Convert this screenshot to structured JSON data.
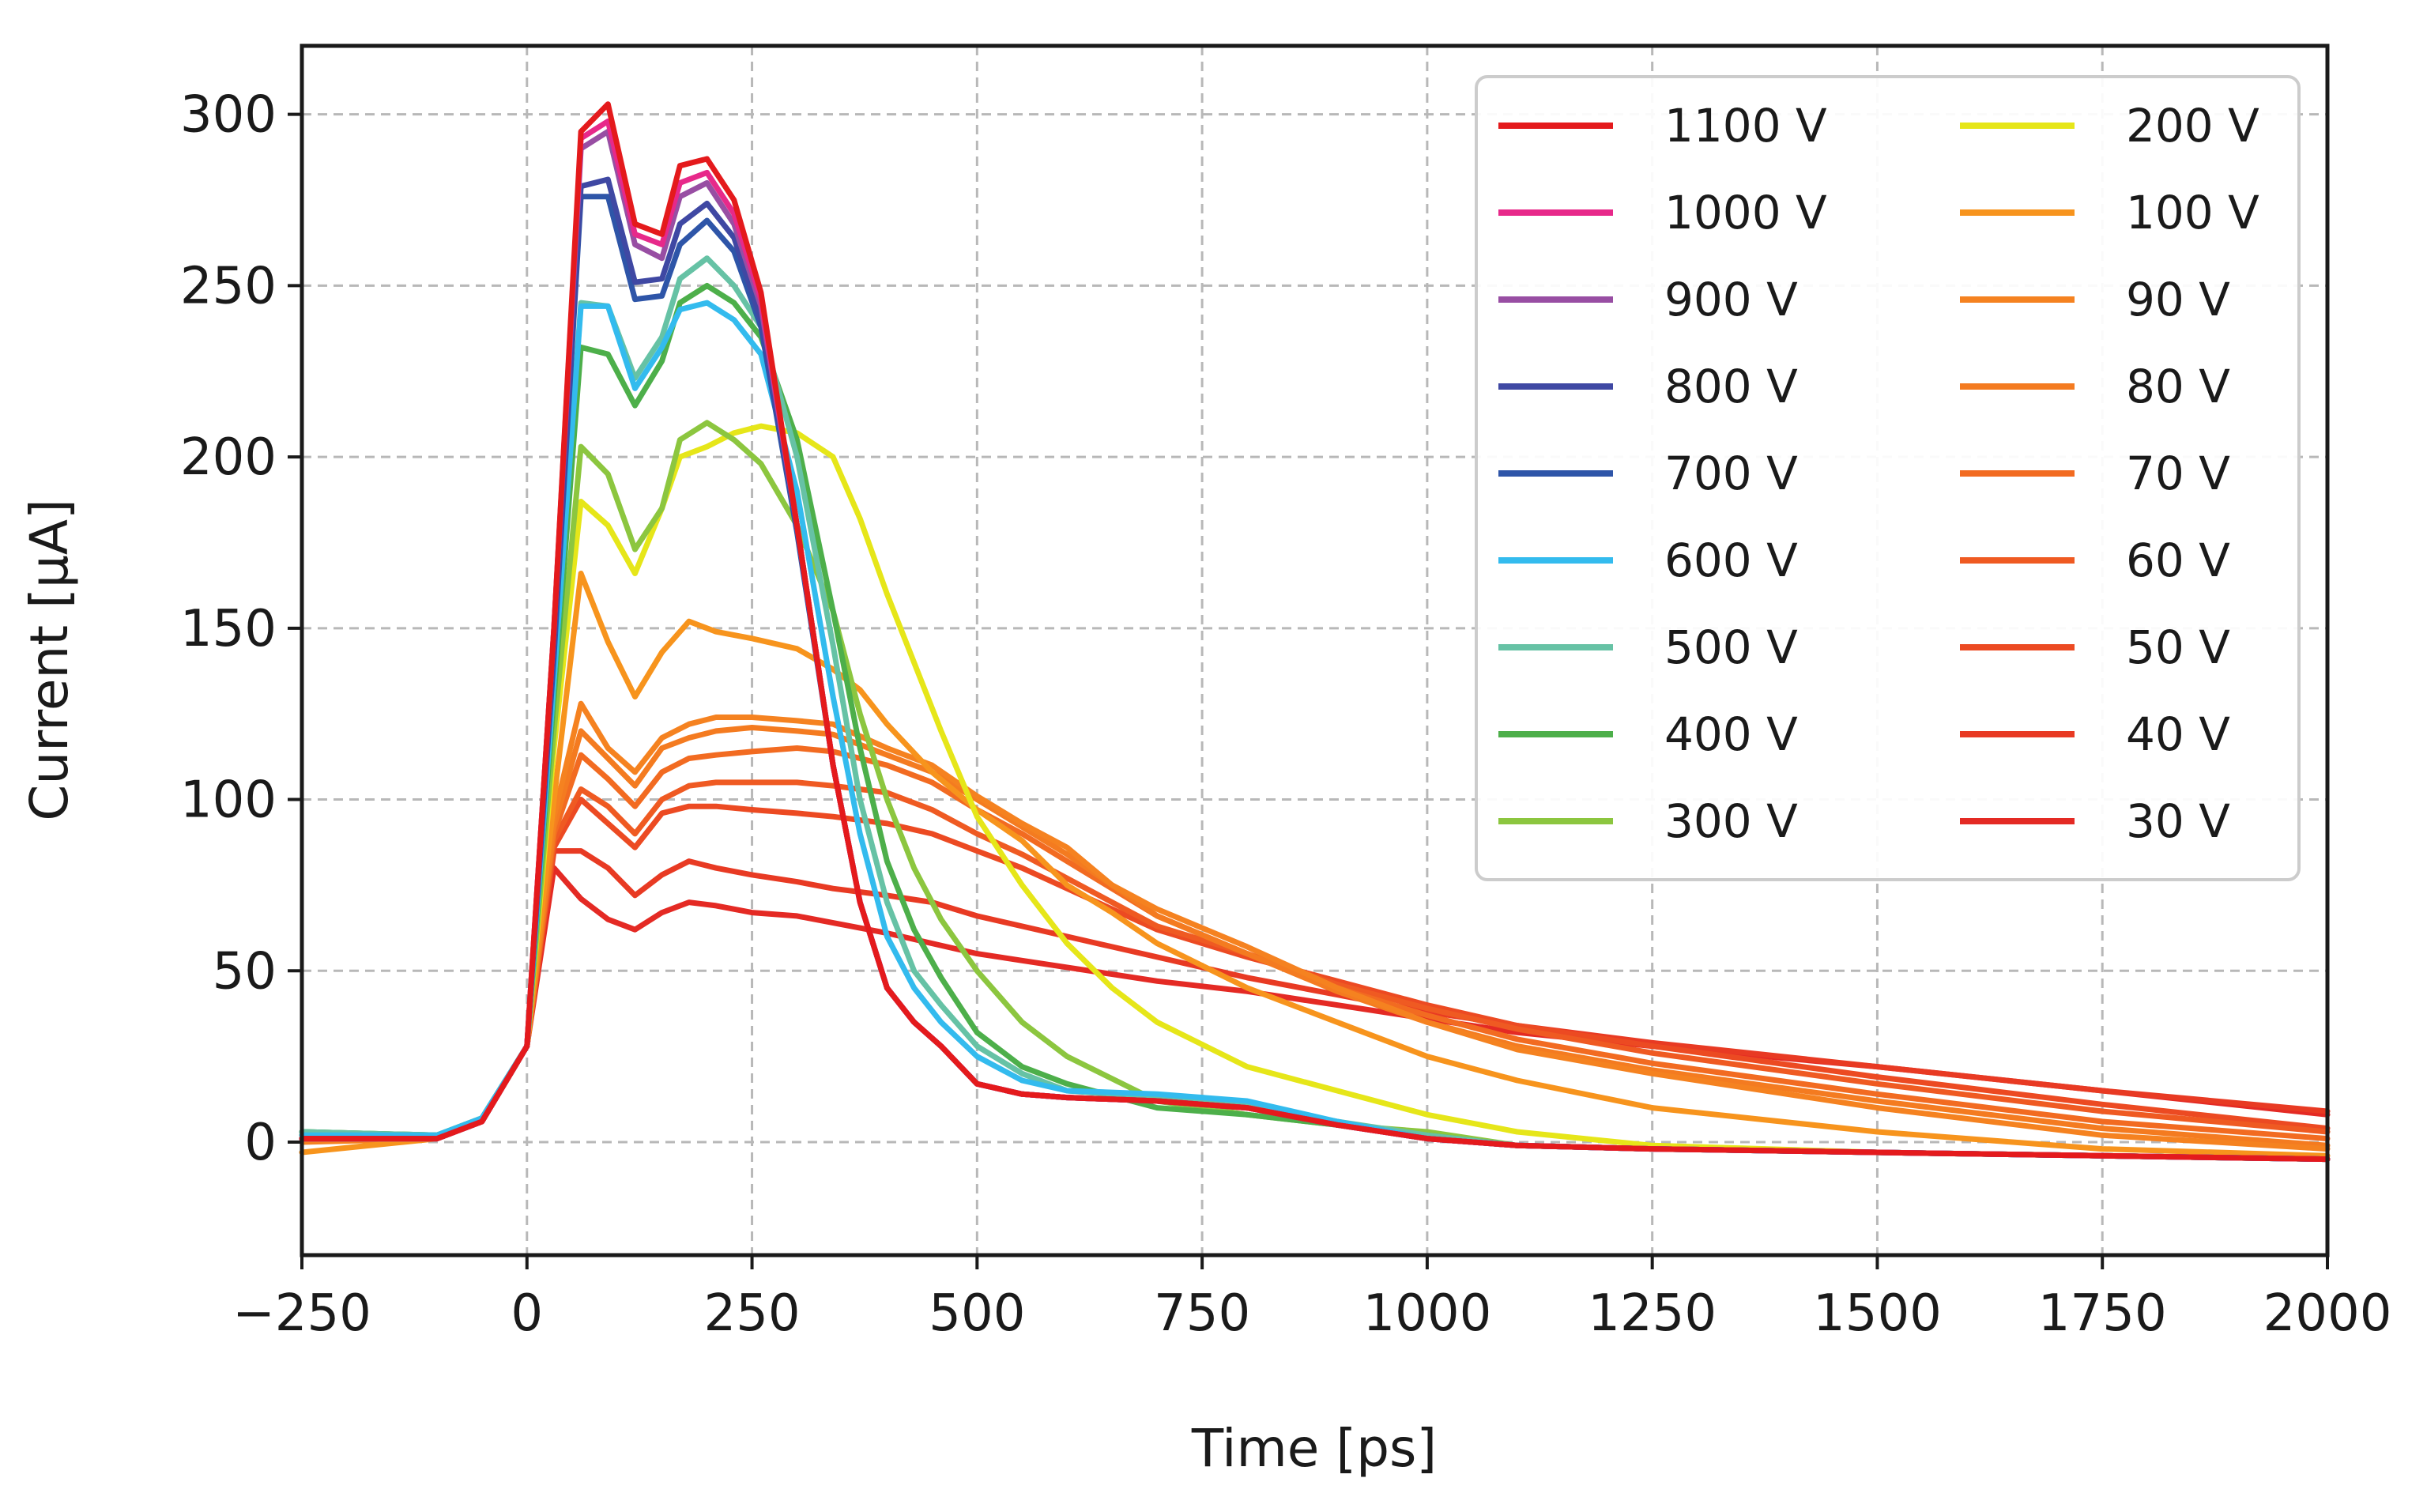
{
  "chart_data": {
    "type": "line",
    "title": "",
    "xlabel": "Time [ps]",
    "ylabel": "Current [μA]",
    "xlim": [
      -250,
      2000
    ],
    "ylim": [
      -33,
      320
    ],
    "xticks": [
      -250,
      0,
      250,
      500,
      750,
      1000,
      1250,
      1500,
      1750,
      2000
    ],
    "xtick_labels": [
      "−250",
      "0",
      "250",
      "500",
      "750",
      "1000",
      "1250",
      "1500",
      "1750",
      "2000"
    ],
    "yticks": [
      0,
      50,
      100,
      150,
      200,
      250,
      300
    ],
    "ytick_labels": [
      "0",
      "50",
      "100",
      "150",
      "200",
      "250",
      "300"
    ],
    "grid": true,
    "legend_position": "top-right",
    "legend_columns": 2,
    "series": [
      {
        "name": "1100 V",
        "color": "#e41a1c",
        "x": [
          -250,
          -100,
          -50,
          0,
          30,
          60,
          90,
          120,
          150,
          170,
          200,
          230,
          260,
          300,
          340,
          370,
          400,
          430,
          460,
          500,
          550,
          600,
          700,
          800,
          900,
          1000,
          1100,
          1250,
          1500,
          1750,
          2000
        ],
        "y": [
          1,
          1,
          6,
          28,
          150,
          295,
          303,
          268,
          265,
          285,
          287,
          275,
          248,
          180,
          110,
          70,
          45,
          35,
          28,
          17,
          14,
          13,
          12,
          10,
          5,
          1,
          -1,
          -2,
          -3,
          -4,
          -5
        ]
      },
      {
        "name": "1000 V",
        "color": "#e7298a",
        "x": [
          -250,
          -100,
          -50,
          0,
          30,
          60,
          90,
          120,
          150,
          170,
          200,
          230,
          260,
          300,
          340,
          370,
          400,
          430,
          460,
          500,
          550,
          600,
          700,
          800,
          900,
          1000,
          1100,
          1250,
          1500,
          1750,
          2000
        ],
        "y": [
          1,
          1,
          6,
          28,
          150,
          293,
          298,
          265,
          262,
          280,
          283,
          271,
          246,
          180,
          110,
          70,
          45,
          35,
          28,
          17,
          14,
          13,
          12,
          10,
          5,
          1,
          -1,
          -2,
          -3,
          -4,
          -5
        ]
      },
      {
        "name": "900 V",
        "color": "#984ea3",
        "x": [
          -250,
          -100,
          -50,
          0,
          30,
          60,
          90,
          120,
          150,
          170,
          200,
          230,
          260,
          300,
          340,
          370,
          400,
          430,
          460,
          500,
          550,
          600,
          700,
          800,
          900,
          1000,
          1100,
          1250,
          1500,
          1750,
          2000
        ],
        "y": [
          1,
          1,
          6,
          28,
          150,
          290,
          295,
          262,
          258,
          276,
          280,
          268,
          244,
          180,
          110,
          70,
          45,
          35,
          28,
          17,
          14,
          13,
          12,
          10,
          5,
          1,
          -1,
          -2,
          -3,
          -4,
          -5
        ]
      },
      {
        "name": "800 V",
        "color": "#3f48a3",
        "x": [
          -250,
          -100,
          -50,
          0,
          30,
          60,
          90,
          120,
          150,
          170,
          200,
          230,
          260,
          300,
          340,
          370,
          400,
          430,
          460,
          500,
          550,
          600,
          700,
          800,
          900,
          1000,
          1100,
          1250,
          1500,
          1750,
          2000
        ],
        "y": [
          1,
          1,
          6,
          28,
          145,
          279,
          281,
          251,
          252,
          268,
          274,
          264,
          240,
          180,
          110,
          70,
          45,
          35,
          28,
          17,
          14,
          13,
          12,
          10,
          5,
          1,
          -1,
          -2,
          -3,
          -4,
          -5
        ]
      },
      {
        "name": "700 V",
        "color": "#2e55a8",
        "x": [
          -250,
          -100,
          -50,
          0,
          30,
          60,
          90,
          120,
          150,
          170,
          200,
          230,
          260,
          300,
          340,
          370,
          400,
          430,
          460,
          500,
          550,
          600,
          700,
          800,
          900,
          1000,
          1100,
          1250,
          1500,
          1750,
          2000
        ],
        "y": [
          1,
          1,
          6,
          28,
          142,
          276,
          276,
          246,
          247,
          262,
          269,
          260,
          238,
          178,
          110,
          70,
          45,
          35,
          28,
          17,
          14,
          13,
          12,
          10,
          5,
          1,
          -1,
          -2,
          -3,
          -4,
          -5
        ]
      },
      {
        "name": "600 V",
        "color": "#33bbee",
        "x": [
          -250,
          -100,
          -50,
          0,
          30,
          60,
          90,
          120,
          150,
          170,
          200,
          230,
          260,
          300,
          340,
          370,
          400,
          430,
          460,
          500,
          550,
          600,
          700,
          800,
          900,
          1000,
          1100,
          1250,
          1500,
          1750,
          2000
        ],
        "y": [
          2,
          2,
          7,
          28,
          135,
          244,
          244,
          220,
          232,
          243,
          245,
          240,
          230,
          190,
          130,
          90,
          60,
          45,
          35,
          25,
          18,
          15,
          14,
          12,
          6,
          1,
          -1,
          -2,
          -3,
          -4,
          -5
        ]
      },
      {
        "name": "500 V",
        "color": "#66c2a5",
        "x": [
          -250,
          -100,
          -50,
          0,
          30,
          60,
          90,
          120,
          150,
          170,
          200,
          230,
          260,
          300,
          340,
          370,
          400,
          430,
          460,
          500,
          550,
          600,
          700,
          800,
          900,
          1000,
          1100,
          1250,
          1500,
          1750,
          2000
        ],
        "y": [
          3,
          2,
          7,
          28,
          135,
          245,
          244,
          223,
          235,
          252,
          258,
          250,
          238,
          200,
          145,
          100,
          70,
          50,
          40,
          28,
          20,
          15,
          13,
          11,
          6,
          2,
          -1,
          -2,
          -3,
          -4,
          -5
        ]
      },
      {
        "name": "400 V",
        "color": "#4daf4a",
        "x": [
          -250,
          -100,
          -50,
          0,
          30,
          60,
          90,
          120,
          150,
          170,
          200,
          230,
          260,
          300,
          340,
          370,
          400,
          430,
          460,
          500,
          550,
          600,
          700,
          800,
          900,
          1000,
          1100,
          1250,
          1500,
          1750,
          2000
        ],
        "y": [
          3,
          2,
          7,
          28,
          130,
          232,
          230,
          215,
          228,
          245,
          250,
          245,
          235,
          205,
          155,
          115,
          82,
          62,
          48,
          32,
          22,
          17,
          10,
          8,
          5,
          2,
          -1,
          -2,
          -3,
          -4,
          -5
        ]
      },
      {
        "name": "300 V",
        "color": "#8cc63f",
        "x": [
          -250,
          -100,
          -50,
          0,
          30,
          60,
          90,
          120,
          150,
          170,
          200,
          230,
          260,
          300,
          340,
          370,
          400,
          430,
          460,
          500,
          550,
          600,
          700,
          800,
          900,
          1000,
          1100,
          1250,
          1500,
          1750,
          2000
        ],
        "y": [
          3,
          2,
          7,
          28,
          120,
          203,
          195,
          173,
          185,
          205,
          210,
          205,
          198,
          180,
          155,
          125,
          100,
          80,
          65,
          50,
          35,
          25,
          12,
          8,
          5,
          3,
          -1,
          -2,
          -3,
          -4,
          -5
        ]
      },
      {
        "name": "200 V",
        "color": "#e6e619",
        "x": [
          -250,
          -100,
          -50,
          0,
          30,
          60,
          90,
          120,
          150,
          170,
          200,
          230,
          260,
          300,
          340,
          370,
          400,
          430,
          460,
          500,
          550,
          600,
          650,
          700,
          800,
          900,
          1000,
          1100,
          1250,
          1500,
          1750,
          2000
        ],
        "y": [
          2,
          2,
          6,
          28,
          115,
          187,
          180,
          166,
          185,
          200,
          203,
          207,
          209,
          207,
          200,
          182,
          160,
          140,
          120,
          95,
          75,
          58,
          45,
          35,
          22,
          15,
          8,
          3,
          -1,
          -3,
          -4,
          -5
        ]
      },
      {
        "name": "100 V",
        "color": "#f7941d",
        "x": [
          -250,
          -100,
          -50,
          0,
          30,
          60,
          90,
          120,
          150,
          180,
          210,
          250,
          300,
          340,
          370,
          400,
          450,
          500,
          550,
          600,
          650,
          700,
          800,
          900,
          1000,
          1100,
          1250,
          1500,
          1750,
          2000
        ],
        "y": [
          -3,
          1,
          6,
          28,
          100,
          166,
          146,
          130,
          143,
          152,
          149,
          147,
          144,
          138,
          132,
          122,
          108,
          97,
          88,
          75,
          67,
          58,
          45,
          35,
          25,
          18,
          10,
          3,
          -2,
          -4
        ]
      },
      {
        "name": "90 V",
        "color": "#f58220",
        "x": [
          -250,
          -100,
          -50,
          0,
          30,
          60,
          90,
          120,
          150,
          180,
          210,
          250,
          300,
          340,
          400,
          450,
          500,
          550,
          600,
          650,
          700,
          800,
          900,
          1000,
          1100,
          1250,
          1500,
          1750,
          2000
        ],
        "y": [
          0,
          1,
          6,
          28,
          95,
          128,
          115,
          108,
          118,
          122,
          124,
          124,
          123,
          122,
          115,
          110,
          101,
          93,
          86,
          75,
          68,
          57,
          45,
          35,
          27,
          20,
          10,
          2,
          -2
        ]
      },
      {
        "name": "80 V",
        "color": "#f47b20",
        "x": [
          -250,
          -100,
          -50,
          0,
          30,
          60,
          90,
          120,
          150,
          180,
          210,
          250,
          300,
          340,
          400,
          450,
          500,
          550,
          600,
          650,
          700,
          800,
          900,
          1000,
          1100,
          1250,
          1500,
          1750,
          2000
        ],
        "y": [
          1,
          1,
          6,
          28,
          92,
          120,
          112,
          104,
          115,
          118,
          120,
          121,
          120,
          119,
          113,
          108,
          100,
          92,
          84,
          75,
          66,
          55,
          44,
          35,
          28,
          21,
          12,
          4,
          -1
        ]
      },
      {
        "name": "70 V",
        "color": "#f26b21",
        "x": [
          -250,
          -100,
          -50,
          0,
          30,
          60,
          90,
          120,
          150,
          180,
          210,
          250,
          300,
          340,
          400,
          450,
          500,
          550,
          600,
          650,
          700,
          800,
          900,
          1000,
          1100,
          1250,
          1500,
          1750,
          2000
        ],
        "y": [
          1,
          1,
          6,
          28,
          90,
          113,
          106,
          98,
          108,
          112,
          113,
          114,
          115,
          114,
          110,
          105,
          97,
          90,
          82,
          74,
          66,
          55,
          45,
          37,
          30,
          23,
          14,
          6,
          1
        ]
      },
      {
        "name": "60 V",
        "color": "#ef5a22",
        "x": [
          -250,
          -100,
          -50,
          0,
          30,
          60,
          90,
          120,
          150,
          180,
          210,
          250,
          300,
          340,
          400,
          450,
          500,
          550,
          600,
          650,
          700,
          800,
          900,
          1000,
          1100,
          1250,
          1500,
          1750,
          2000
        ],
        "y": [
          1,
          1,
          6,
          28,
          88,
          103,
          98,
          90,
          100,
          104,
          105,
          105,
          105,
          104,
          102,
          97,
          90,
          84,
          77,
          70,
          63,
          55,
          46,
          39,
          33,
          26,
          17,
          9,
          3
        ]
      },
      {
        "name": "50 V",
        "color": "#ec4a22",
        "x": [
          -250,
          -100,
          -50,
          0,
          30,
          60,
          90,
          120,
          150,
          180,
          210,
          250,
          300,
          340,
          400,
          450,
          500,
          550,
          600,
          650,
          700,
          800,
          900,
          1000,
          1100,
          1250,
          1500,
          1750,
          2000
        ],
        "y": [
          1,
          1,
          6,
          28,
          86,
          100,
          93,
          86,
          96,
          98,
          98,
          97,
          96,
          95,
          93,
          90,
          85,
          80,
          74,
          68,
          62,
          54,
          47,
          40,
          34,
          28,
          19,
          11,
          4
        ]
      },
      {
        "name": "40 V",
        "color": "#e83a23",
        "x": [
          -250,
          -100,
          -50,
          0,
          30,
          60,
          90,
          120,
          150,
          180,
          210,
          250,
          300,
          340,
          400,
          450,
          500,
          550,
          600,
          650,
          700,
          800,
          900,
          1000,
          1100,
          1250,
          1500,
          1750,
          2000
        ],
        "y": [
          1,
          1,
          6,
          28,
          85,
          85,
          80,
          72,
          78,
          82,
          80,
          78,
          76,
          74,
          72,
          70,
          66,
          63,
          60,
          57,
          54,
          48,
          43,
          38,
          34,
          29,
          22,
          15,
          9
        ]
      },
      {
        "name": "30 V",
        "color": "#e42a24",
        "x": [
          -250,
          -100,
          -50,
          0,
          30,
          60,
          90,
          120,
          150,
          180,
          210,
          250,
          300,
          340,
          400,
          450,
          500,
          550,
          600,
          650,
          700,
          800,
          900,
          1000,
          1100,
          1250,
          1500,
          1750,
          2000
        ],
        "y": [
          1,
          1,
          6,
          28,
          80,
          71,
          65,
          62,
          67,
          70,
          69,
          67,
          66,
          64,
          61,
          58,
          55,
          53,
          51,
          49,
          47,
          44,
          40,
          36,
          32,
          28,
          22,
          15,
          8
        ]
      }
    ]
  }
}
